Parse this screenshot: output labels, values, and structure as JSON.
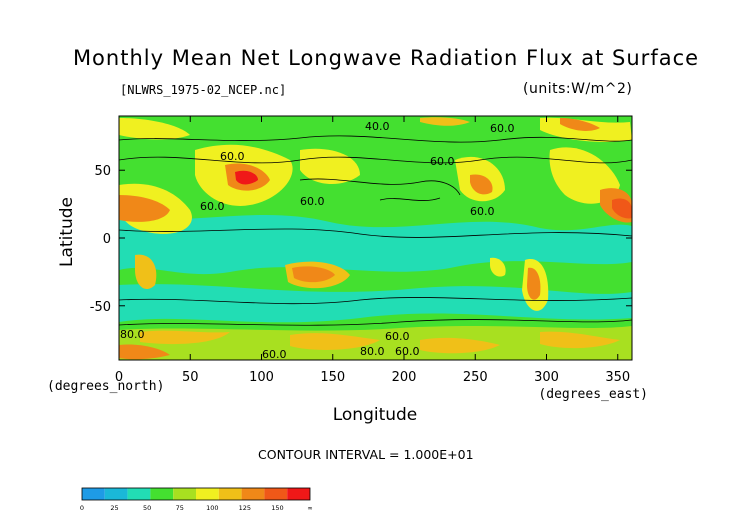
{
  "title": "Monthly Mean Net Longwave Radiation Flux at Surface",
  "source_file": "[NLWRS_1975-02_NCEP.nc]",
  "units_label": "(units:W/m^2)",
  "contour_interval": "CONTOUR INTERVAL = 1.000E+01",
  "chart_data": {
    "type": "heatmap",
    "title": "Monthly Mean Net Longwave Radiation Flux at Surface",
    "xlabel": "Longitude",
    "ylabel": "Latitude",
    "x_unit_label": "(degrees_east)",
    "y_unit_label": "(degrees_north)",
    "xlim": [
      0,
      360
    ],
    "ylim": [
      -90,
      90
    ],
    "x_ticks": [
      0,
      50,
      100,
      150,
      200,
      250,
      300,
      350
    ],
    "y_ticks": [
      50,
      0,
      -50
    ],
    "contour_labels": [
      "40.0",
      "60.0",
      "60.0",
      "60.0",
      "60.0",
      "60.0",
      "60.0",
      "60.0",
      "60.0",
      "80.0",
      "80.0",
      "60.0"
    ],
    "colorbar": {
      "ticks": [
        "0",
        "25",
        "50",
        "75",
        "100",
        "125",
        "150",
        "∞"
      ],
      "colors": [
        "#1e9be6",
        "#1ab8d8",
        "#22ddb4",
        "#44e030",
        "#a8e020",
        "#f0f020",
        "#f0c018",
        "#f08818",
        "#f05818",
        "#f01818"
      ]
    }
  }
}
